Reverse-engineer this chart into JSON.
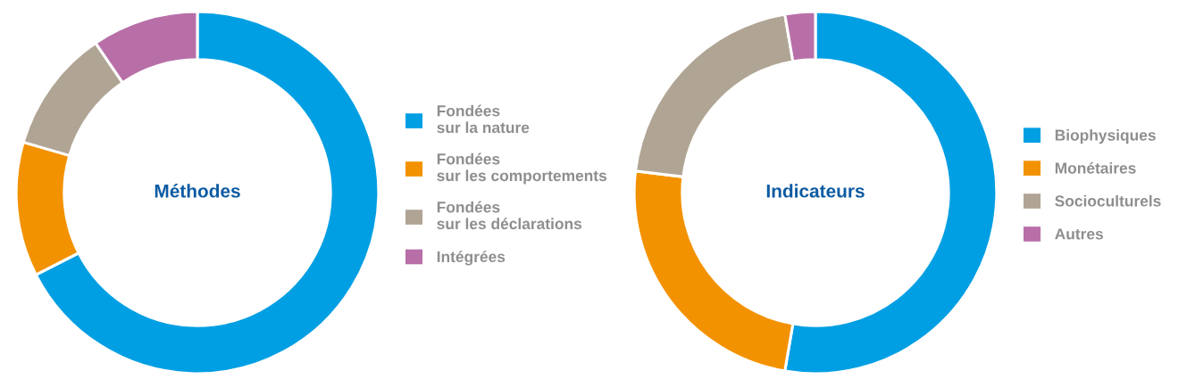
{
  "chart_data": [
    {
      "type": "donut",
      "title": "Méthodes",
      "categories": [
        "Fondées\nsur la nature",
        "Fondées\nsur les comportements",
        "Fondées\nsur les déclarations",
        "Intégrées"
      ],
      "values": [
        67.5,
        12,
        11,
        9.5
      ],
      "colors": [
        "#009fe3",
        "#f39200",
        "#b0a494",
        "#b86fa8"
      ],
      "legend": "right"
    },
    {
      "type": "donut",
      "title": "Indicateurs",
      "categories": [
        "Biophysiques",
        "Monétaires",
        "Socioculturels",
        "Autres"
      ],
      "values": [
        52.7,
        24.2,
        20.4,
        2.7
      ],
      "colors": [
        "#009fe3",
        "#f39200",
        "#b0a494",
        "#b86fa8"
      ],
      "legend": "right"
    }
  ]
}
